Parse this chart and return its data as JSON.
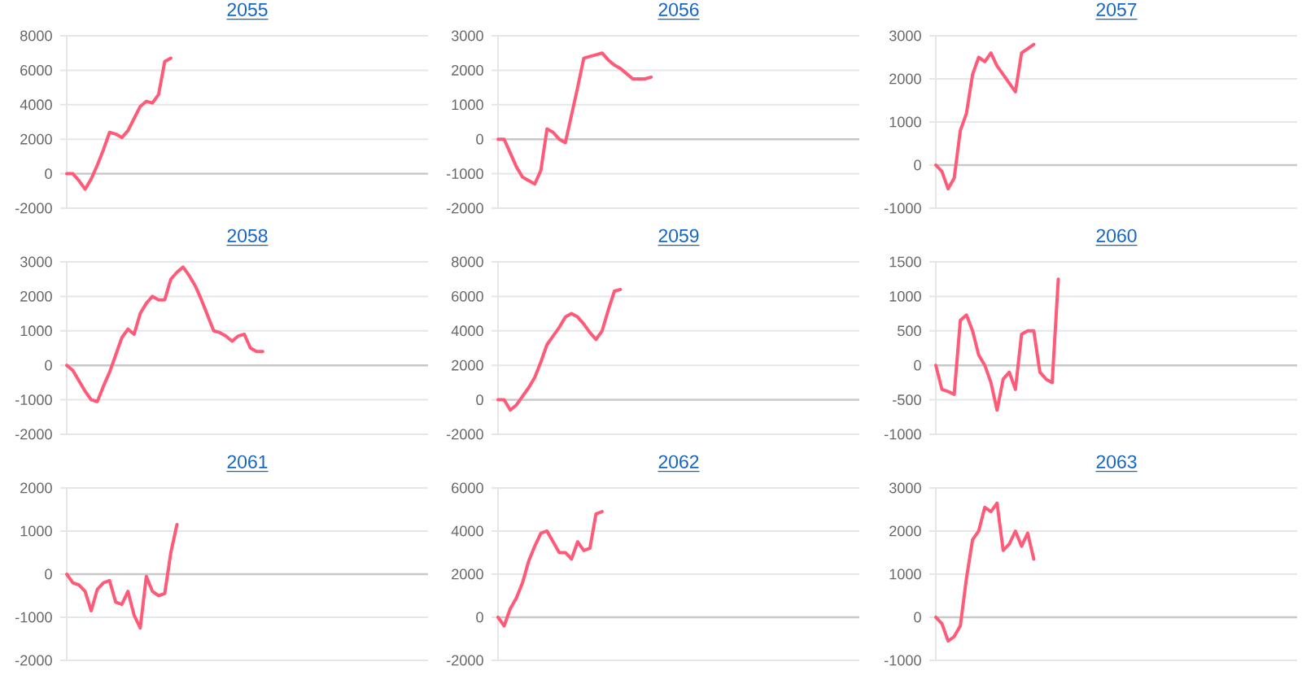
{
  "chart_data": [
    {
      "type": "line",
      "title": "2055",
      "grid": "y",
      "ylim": [
        -2000,
        8000
      ],
      "yticks": [
        -2000,
        0,
        2000,
        4000,
        6000,
        8000
      ],
      "categories": [
        null,
        null,
        null,
        null,
        null,
        null,
        null,
        null,
        null,
        null,
        null,
        null,
        null,
        null,
        null,
        null,
        null,
        null,
        null,
        null,
        null,
        null,
        null,
        null,
        null,
        null,
        null,
        null,
        null,
        null,
        null,
        null,
        null,
        null,
        null,
        null,
        null,
        null,
        null,
        null,
        null,
        null,
        null,
        null,
        null,
        null,
        null,
        null,
        null,
        null,
        null,
        null,
        null,
        null,
        null,
        null,
        null,
        null,
        null,
        null
      ],
      "series": [
        {
          "color": "#ff5a78",
          "values": [
            0,
            0,
            -400,
            -900,
            -300,
            500,
            1400,
            2400,
            2300,
            2100,
            2500,
            3200,
            3900,
            4200,
            4100,
            4600,
            6500,
            6700,
            null,
            null,
            null,
            null,
            null,
            null,
            null,
            null,
            null,
            null,
            null,
            null,
            null,
            null,
            null,
            null,
            null,
            null,
            null,
            null,
            null,
            null,
            null,
            null,
            null,
            null,
            null,
            null,
            null,
            null,
            null,
            null,
            null,
            null,
            null,
            null,
            null,
            null,
            null,
            null,
            null,
            null
          ]
        }
      ]
    },
    {
      "type": "line",
      "title": "2056",
      "grid": "y",
      "ylim": [
        -2000,
        3000
      ],
      "yticks": [
        -2000,
        -1000,
        0,
        1000,
        2000,
        3000
      ],
      "categories": [
        null,
        null,
        null,
        null,
        null,
        null,
        null,
        null,
        null,
        null,
        null,
        null,
        null,
        null,
        null,
        null,
        null,
        null,
        null,
        null,
        null,
        null,
        null,
        null,
        null,
        null,
        null,
        null,
        null,
        null,
        null,
        null,
        null,
        null,
        null,
        null,
        null,
        null,
        null,
        null,
        null,
        null,
        null,
        null,
        null,
        null,
        null,
        null,
        null,
        null,
        null,
        null,
        null,
        null,
        null,
        null,
        null,
        null,
        null,
        null
      ],
      "series": [
        {
          "color": "#ff5a78",
          "values": [
            0,
            0,
            -400,
            -800,
            -1100,
            -1200,
            -1300,
            -900,
            300,
            200,
            0,
            -100,
            700,
            1500,
            2350,
            2400,
            2450,
            2500,
            2300,
            2150,
            2050,
            1900,
            1750,
            1750,
            1750,
            1800,
            null,
            null,
            null,
            null,
            null,
            null,
            null,
            null,
            null,
            null,
            null,
            null,
            null,
            null,
            null,
            null,
            null,
            null,
            null,
            null,
            null,
            null,
            null,
            null,
            null,
            null,
            null,
            null,
            null,
            null,
            null,
            null,
            null,
            null
          ]
        }
      ]
    },
    {
      "type": "line",
      "title": "2057",
      "grid": "y",
      "ylim": [
        -1000,
        3000
      ],
      "yticks": [
        -1000,
        0,
        1000,
        2000,
        3000
      ],
      "categories": [
        null,
        null,
        null,
        null,
        null,
        null,
        null,
        null,
        null,
        null,
        null,
        null,
        null,
        null,
        null,
        null,
        null,
        null,
        null,
        null,
        null,
        null,
        null,
        null,
        null,
        null,
        null,
        null,
        null,
        null,
        null,
        null,
        null,
        null,
        null,
        null,
        null,
        null,
        null,
        null,
        null,
        null,
        null,
        null,
        null,
        null,
        null,
        null,
        null,
        null,
        null,
        null,
        null,
        null,
        null,
        null,
        null,
        null,
        null,
        null
      ],
      "series": [
        {
          "color": "#ff5a78",
          "values": [
            0,
            -150,
            -550,
            -300,
            800,
            1200,
            2100,
            2500,
            2400,
            2600,
            2300,
            2100,
            1900,
            1700,
            2600,
            2700,
            2800,
            null,
            null,
            null,
            null,
            null,
            null,
            null,
            null,
            null,
            null,
            null,
            null,
            null,
            null,
            null,
            null,
            null,
            null,
            null,
            null,
            null,
            null,
            null,
            null,
            null,
            null,
            null,
            null,
            null,
            null,
            null,
            null,
            null,
            null,
            null,
            null,
            null,
            null,
            null,
            null,
            null,
            null,
            null
          ]
        }
      ]
    },
    {
      "type": "line",
      "title": "2058",
      "grid": "y",
      "ylim": [
        -2000,
        3000
      ],
      "yticks": [
        -2000,
        -1000,
        0,
        1000,
        2000,
        3000
      ],
      "categories": [
        null,
        null,
        null,
        null,
        null,
        null,
        null,
        null,
        null,
        null,
        null,
        null,
        null,
        null,
        null,
        null,
        null,
        null,
        null,
        null,
        null,
        null,
        null,
        null,
        null,
        null,
        null,
        null,
        null,
        null,
        null,
        null,
        null,
        null,
        null,
        null,
        null,
        null,
        null,
        null,
        null,
        null,
        null,
        null,
        null,
        null,
        null,
        null,
        null,
        null,
        null,
        null,
        null,
        null,
        null,
        null,
        null,
        null,
        null,
        null
      ],
      "series": [
        {
          "color": "#ff5a78",
          "values": [
            0,
            -150,
            -450,
            -750,
            -1000,
            -1050,
            -600,
            -200,
            300,
            800,
            1050,
            900,
            1500,
            1800,
            2000,
            1900,
            1900,
            2500,
            2700,
            2850,
            2600,
            2300,
            1900,
            1450,
            1000,
            950,
            850,
            700,
            850,
            900,
            500,
            400,
            400,
            null,
            null,
            null,
            null,
            null,
            null,
            null,
            null,
            null,
            null,
            null,
            null,
            null,
            null,
            null,
            null,
            null,
            null,
            null,
            null,
            null,
            null,
            null,
            null,
            null,
            null,
            null
          ]
        }
      ]
    },
    {
      "type": "line",
      "title": "2059",
      "grid": "y",
      "ylim": [
        -2000,
        8000
      ],
      "yticks": [
        -2000,
        0,
        2000,
        4000,
        6000,
        8000
      ],
      "categories": [
        null,
        null,
        null,
        null,
        null,
        null,
        null,
        null,
        null,
        null,
        null,
        null,
        null,
        null,
        null,
        null,
        null,
        null,
        null,
        null,
        null,
        null,
        null,
        null,
        null,
        null,
        null,
        null,
        null,
        null,
        null,
        null,
        null,
        null,
        null,
        null,
        null,
        null,
        null,
        null,
        null,
        null,
        null,
        null,
        null,
        null,
        null,
        null,
        null,
        null,
        null,
        null,
        null,
        null,
        null,
        null,
        null,
        null,
        null,
        null
      ],
      "series": [
        {
          "color": "#ff5a78",
          "values": [
            0,
            0,
            -600,
            -300,
            200,
            700,
            1300,
            2200,
            3200,
            3700,
            4200,
            4800,
            5000,
            4800,
            4400,
            3900,
            3500,
            4000,
            5200,
            6300,
            6400,
            null,
            null,
            null,
            null,
            null,
            null,
            null,
            null,
            null,
            null,
            null,
            null,
            null,
            null,
            null,
            null,
            null,
            null,
            null,
            null,
            null,
            null,
            null,
            null,
            null,
            null,
            null,
            null,
            null,
            null,
            null,
            null,
            null,
            null,
            null,
            null,
            null,
            null,
            null
          ]
        }
      ]
    },
    {
      "type": "line",
      "title": "2060",
      "grid": "y",
      "ylim": [
        -1000,
        1500
      ],
      "yticks": [
        -1000,
        -500,
        0,
        500,
        1000,
        1500
      ],
      "categories": [
        null,
        null,
        null,
        null,
        null,
        null,
        null,
        null,
        null,
        null,
        null,
        null,
        null,
        null,
        null,
        null,
        null,
        null,
        null,
        null,
        null,
        null,
        null,
        null,
        null,
        null,
        null,
        null,
        null,
        null,
        null,
        null,
        null,
        null,
        null,
        null,
        null,
        null,
        null,
        null,
        null,
        null,
        null,
        null,
        null,
        null,
        null,
        null,
        null,
        null,
        null,
        null,
        null,
        null,
        null,
        null,
        null,
        null,
        null,
        null
      ],
      "series": [
        {
          "color": "#ff5a78",
          "values": [
            0,
            -350,
            -380,
            -420,
            650,
            730,
            500,
            150,
            0,
            -250,
            -650,
            -200,
            -100,
            -350,
            450,
            500,
            500,
            -100,
            -200,
            -250,
            1250,
            null,
            null,
            null,
            null,
            null,
            null,
            null,
            null,
            null,
            null,
            null,
            null,
            null,
            null,
            null,
            null,
            null,
            null,
            null,
            null,
            null,
            null,
            null,
            null,
            null,
            null,
            null,
            null,
            null,
            null,
            null,
            null,
            null,
            null,
            null,
            null,
            null,
            null,
            null
          ]
        }
      ]
    },
    {
      "type": "line",
      "title": "2061",
      "grid": "y",
      "ylim": [
        -2000,
        2000
      ],
      "yticks": [
        -2000,
        -1000,
        0,
        1000,
        2000
      ],
      "categories": [
        null,
        null,
        null,
        null,
        null,
        null,
        null,
        null,
        null,
        null,
        null,
        null,
        null,
        null,
        null,
        null,
        null,
        null,
        null,
        null,
        null,
        null,
        null,
        null,
        null,
        null,
        null,
        null,
        null,
        null,
        null,
        null,
        null,
        null,
        null,
        null,
        null,
        null,
        null,
        null,
        null,
        null,
        null,
        null,
        null,
        null,
        null,
        null,
        null,
        null,
        null,
        null,
        null,
        null,
        null,
        null,
        null,
        null,
        null,
        null
      ],
      "series": [
        {
          "color": "#ff5a78",
          "values": [
            0,
            -200,
            -250,
            -400,
            -850,
            -350,
            -200,
            -150,
            -650,
            -700,
            -400,
            -950,
            -1250,
            -50,
            -400,
            -500,
            -450,
            500,
            1150,
            null,
            null,
            null,
            null,
            null,
            null,
            null,
            null,
            null,
            null,
            null,
            null,
            null,
            null,
            null,
            null,
            null,
            null,
            null,
            null,
            null,
            null,
            null,
            null,
            null,
            null,
            null,
            null,
            null,
            null,
            null,
            null,
            null,
            null,
            null,
            null,
            null,
            null,
            null,
            null,
            null
          ]
        }
      ]
    },
    {
      "type": "line",
      "title": "2062",
      "grid": "y",
      "ylim": [
        -2000,
        6000
      ],
      "yticks": [
        -2000,
        0,
        2000,
        4000,
        6000
      ],
      "categories": [
        null,
        null,
        null,
        null,
        null,
        null,
        null,
        null,
        null,
        null,
        null,
        null,
        null,
        null,
        null,
        null,
        null,
        null,
        null,
        null,
        null,
        null,
        null,
        null,
        null,
        null,
        null,
        null,
        null,
        null,
        null,
        null,
        null,
        null,
        null,
        null,
        null,
        null,
        null,
        null,
        null,
        null,
        null,
        null,
        null,
        null,
        null,
        null,
        null,
        null,
        null,
        null,
        null,
        null,
        null,
        null,
        null,
        null,
        null,
        null
      ],
      "series": [
        {
          "color": "#ff5a78",
          "values": [
            0,
            -400,
            400,
            900,
            1600,
            2600,
            3300,
            3900,
            4000,
            3500,
            3000,
            3000,
            2700,
            3500,
            3100,
            3200,
            4800,
            4900,
            null,
            null,
            null,
            null,
            null,
            null,
            null,
            null,
            null,
            null,
            null,
            null,
            null,
            null,
            null,
            null,
            null,
            null,
            null,
            null,
            null,
            null,
            null,
            null,
            null,
            null,
            null,
            null,
            null,
            null,
            null,
            null,
            null,
            null,
            null,
            null,
            null,
            null,
            null,
            null,
            null,
            null
          ]
        }
      ]
    },
    {
      "type": "line",
      "title": "2063",
      "grid": "y",
      "ylim": [
        -1000,
        3000
      ],
      "yticks": [
        -1000,
        0,
        1000,
        2000,
        3000
      ],
      "categories": [
        null,
        null,
        null,
        null,
        null,
        null,
        null,
        null,
        null,
        null,
        null,
        null,
        null,
        null,
        null,
        null,
        null,
        null,
        null,
        null,
        null,
        null,
        null,
        null,
        null,
        null,
        null,
        null,
        null,
        null,
        null,
        null,
        null,
        null,
        null,
        null,
        null,
        null,
        null,
        null,
        null,
        null,
        null,
        null,
        null,
        null,
        null,
        null,
        null,
        null,
        null,
        null,
        null,
        null,
        null,
        null,
        null,
        null,
        null,
        null
      ],
      "series": [
        {
          "color": "#ff5a78",
          "values": [
            0,
            -150,
            -550,
            -450,
            -200,
            900,
            1800,
            2000,
            2550,
            2450,
            2650,
            1550,
            1700,
            2000,
            1650,
            1950,
            1350,
            null,
            null,
            null,
            null,
            null,
            null,
            null,
            null,
            null,
            null,
            null,
            null,
            null,
            null,
            null,
            null,
            null,
            null,
            null,
            null,
            null,
            null,
            null,
            null,
            null,
            null,
            null,
            null,
            null,
            null,
            null,
            null,
            null,
            null,
            null,
            null,
            null,
            null,
            null,
            null,
            null,
            null,
            null
          ]
        }
      ]
    }
  ]
}
